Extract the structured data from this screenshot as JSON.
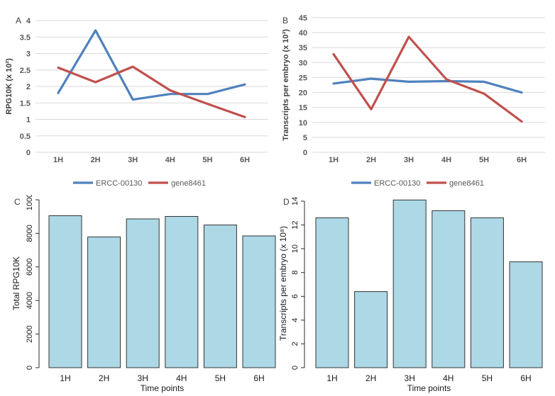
{
  "figure": {
    "background": "#ffffff",
    "panel_labels": [
      "A",
      "B",
      "C",
      "D"
    ]
  },
  "colors": {
    "series_blue": "#4F81BD",
    "series_red": "#C0504D",
    "gridline": "#D9D9D9",
    "excel_text": "#595959",
    "bar_fill": "#ADD8E6",
    "bar_border": "#333333"
  },
  "chart_data": [
    {
      "id": "A",
      "panel_label": "A",
      "type": "line",
      "categories": [
        "1H",
        "2H",
        "3H",
        "4H",
        "5H",
        "6H"
      ],
      "series": [
        {
          "name": "ERCC-00130",
          "color": "#4F81BD",
          "values": [
            1.8,
            3.7,
            1.6,
            1.77,
            1.77,
            2.06
          ]
        },
        {
          "name": "gene8461",
          "color": "#C0504D",
          "values": [
            2.57,
            2.13,
            2.6,
            1.88,
            1.47,
            1.07
          ]
        }
      ],
      "title": "",
      "xlabel": "",
      "ylabel": "RPG10K (x 10²)",
      "ylim": [
        0,
        4
      ],
      "ytick_step": 0.5,
      "grid": true,
      "legend_position": "bottom"
    },
    {
      "id": "B",
      "panel_label": "B",
      "type": "line",
      "categories": [
        "1H",
        "2H",
        "3H",
        "4H",
        "5H",
        "6H"
      ],
      "series": [
        {
          "name": "ERCC-00130",
          "color": "#4F81BD",
          "values": [
            23,
            24.6,
            23.6,
            23.8,
            23.6,
            20
          ]
        },
        {
          "name": "gene8461",
          "color": "#C0504D",
          "values": [
            32.8,
            14.4,
            38.6,
            24.4,
            19.6,
            10.3
          ]
        }
      ],
      "title": "",
      "xlabel": "",
      "ylabel": "Transcripts per embryo (x 10³)",
      "ylim": [
        0,
        45
      ],
      "ytick_step": 5,
      "grid": true,
      "legend_position": "bottom"
    },
    {
      "id": "C",
      "panel_label": "C",
      "type": "bar",
      "categories": [
        "1H",
        "2H",
        "3H",
        "4H",
        "5H",
        "6H"
      ],
      "values": [
        9050,
        7790,
        8860,
        9010,
        8500,
        7850
      ],
      "bar_color": "#ADD8E6",
      "bar_border": "#333333",
      "title": "",
      "xlabel": "Time points",
      "ylabel": "Total RPG10K",
      "ylim": [
        0,
        10000
      ],
      "ytick_step": 2000,
      "grid": false,
      "legend_position": "none"
    },
    {
      "id": "D",
      "panel_label": "D",
      "type": "bar",
      "categories": [
        "1H",
        "2H",
        "3H",
        "4H",
        "5H",
        "6H"
      ],
      "values": [
        12.6,
        6.4,
        14.1,
        13.2,
        12.6,
        8.9
      ],
      "bar_color": "#ADD8E6",
      "bar_border": "#333333",
      "title": "",
      "xlabel": "Time points",
      "ylabel": "Transcripts per embryo (x 10⁸)",
      "ylim": [
        0,
        14
      ],
      "ytick_step": 2,
      "grid": false,
      "legend_position": "none"
    }
  ]
}
